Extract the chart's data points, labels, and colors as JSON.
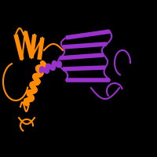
{
  "background_color": "#000000",
  "fig_width": 2.0,
  "fig_height": 2.0,
  "dpi": 100,
  "domain1_color": "#FF8C00",
  "domain2_color": "#9932CC"
}
